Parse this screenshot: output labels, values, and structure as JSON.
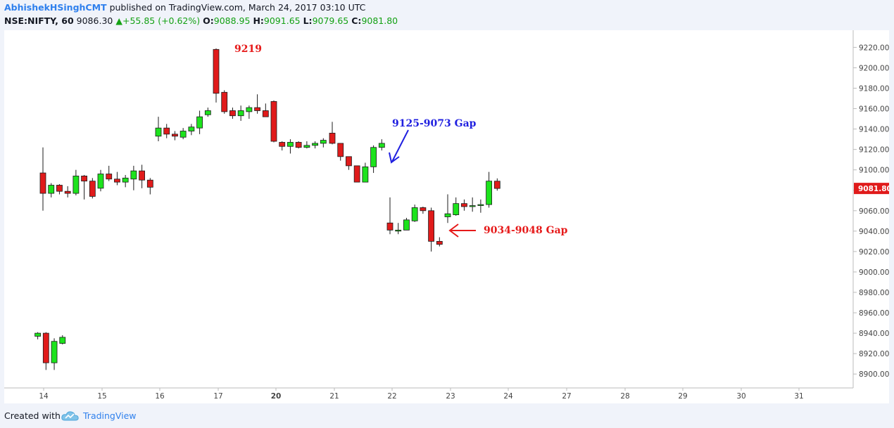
{
  "header": {
    "author": "AbhishekHSinghCMT",
    "published_text": "published on TradingView.com, March 24, 2017 03:10 UTC",
    "symbol": "NSE:NIFTY, 60",
    "last_price": "9086.30",
    "change_arrow": "▲",
    "change": "+55.85 (+0.62%)",
    "open_label": "O:",
    "open": "9088.95",
    "high_label": "H:",
    "high": "9091.65",
    "low_label": "L:",
    "low": "9079.65",
    "close_label": "C:",
    "close": "9081.80"
  },
  "footer": {
    "created_with": "Created with",
    "brand": "TradingView"
  },
  "colors": {
    "up": "#1de31d",
    "down": "#e01b1b",
    "wick": "#1c1c1c",
    "price_tag": "#e01b1b",
    "blue_annotation": "#2020e0",
    "red_annotation": "#e61a1a"
  },
  "chart_data": {
    "type": "candlestick",
    "title": "",
    "xlabel": "",
    "ylabel": "",
    "ylim": [
      8888,
      9235
    ],
    "grid": false,
    "y_ticks": [
      8900,
      8920,
      8940,
      8960,
      8980,
      9000,
      9020,
      9040,
      9060,
      9080,
      9100,
      9120,
      9140,
      9160,
      9180,
      9200,
      9220
    ],
    "y_tick_labels": [
      "8900.00",
      "8920.00",
      "8940.00",
      "8960.00",
      "8980.00",
      "9000.00",
      "9020.00",
      "9040.00",
      "9060.00",
      "9080.00",
      "9100.00",
      "9120.00",
      "9140.00",
      "9160.00",
      "9180.00",
      "9200.00",
      "9220.00"
    ],
    "x_ticks": [
      "14",
      "15",
      "16",
      "17",
      "20",
      "21",
      "22",
      "23",
      "24",
      "27",
      "28",
      "29",
      "30",
      "31"
    ],
    "bold_x_ticks": [
      "20"
    ],
    "last_price_label": "9081.80",
    "annotations": [
      {
        "text": "9219",
        "color": "red"
      },
      {
        "text": "9125-9073 Gap",
        "color": "blue"
      },
      {
        "text": "9034-9048 Gap",
        "color": "red"
      }
    ],
    "candles": [
      {
        "t": "Mar 13 14:15",
        "o": 8937,
        "h": 8941,
        "l": 8934,
        "c": 8940
      },
      {
        "t": "Mar 13 15:15",
        "o": 8940,
        "h": 8941,
        "l": 8904,
        "c": 8911
      },
      {
        "t": "Mar 13 16:15",
        "o": 8911,
        "h": 8935,
        "l": 8904,
        "c": 8932
      },
      {
        "t": "Mar 13 17:15",
        "o": 8930,
        "h": 8938,
        "l": 8929,
        "c": 8936
      },
      {
        "t": "Mar 14 09:15",
        "o": 9097,
        "h": 9122,
        "l": 9060,
        "c": 9077
      },
      {
        "t": "Mar 14 10:15",
        "o": 9077,
        "h": 9087,
        "l": 9073,
        "c": 9085
      },
      {
        "t": "Mar 14 11:15",
        "o": 9085,
        "h": 9086,
        "l": 9076,
        "c": 9079
      },
      {
        "t": "Mar 14 12:15",
        "o": 9079,
        "h": 9084,
        "l": 9073,
        "c": 9077
      },
      {
        "t": "Mar 14 13:15",
        "o": 9077,
        "h": 9100,
        "l": 9075,
        "c": 9094
      },
      {
        "t": "Mar 14 14:15",
        "o": 9094,
        "h": 9095,
        "l": 9071,
        "c": 9089
      },
      {
        "t": "Mar 14 15:15",
        "o": 9089,
        "h": 9092,
        "l": 9072,
        "c": 9074
      },
      {
        "t": "Mar 15 09:15",
        "o": 9082,
        "h": 9100,
        "l": 9079,
        "c": 9096
      },
      {
        "t": "Mar 15 10:15",
        "o": 9096,
        "h": 9104,
        "l": 9089,
        "c": 9091
      },
      {
        "t": "Mar 15 11:15",
        "o": 9091,
        "h": 9098,
        "l": 9085,
        "c": 9088
      },
      {
        "t": "Mar 15 12:15",
        "o": 9088,
        "h": 9095,
        "l": 9083,
        "c": 9092
      },
      {
        "t": "Mar 15 13:15",
        "o": 9091,
        "h": 9104,
        "l": 9080,
        "c": 9099
      },
      {
        "t": "Mar 15 14:15",
        "o": 9099,
        "h": 9105,
        "l": 9082,
        "c": 9090
      },
      {
        "t": "Mar 15 15:15",
        "o": 9090,
        "h": 9092,
        "l": 9076,
        "c": 9083
      },
      {
        "t": "Mar 16 09:15",
        "o": 9133,
        "h": 9152,
        "l": 9128,
        "c": 9141
      },
      {
        "t": "Mar 16 10:15",
        "o": 9141,
        "h": 9145,
        "l": 9131,
        "c": 9135
      },
      {
        "t": "Mar 16 11:15",
        "o": 9135,
        "h": 9138,
        "l": 9129,
        "c": 9133
      },
      {
        "t": "Mar 16 12:15",
        "o": 9132,
        "h": 9141,
        "l": 9130,
        "c": 9138
      },
      {
        "t": "Mar 16 13:15",
        "o": 9138,
        "h": 9145,
        "l": 9134,
        "c": 9142
      },
      {
        "t": "Mar 16 14:15",
        "o": 9141,
        "h": 9158,
        "l": 9135,
        "c": 9152
      },
      {
        "t": "Mar 16 15:15",
        "o": 9154,
        "h": 9161,
        "l": 9152,
        "c": 9158
      },
      {
        "t": "Mar 17 09:15",
        "o": 9218,
        "h": 9219,
        "l": 9166,
        "c": 9175
      },
      {
        "t": "Mar 17 10:15",
        "o": 9176,
        "h": 9178,
        "l": 9155,
        "c": 9157
      },
      {
        "t": "Mar 17 11:15",
        "o": 9158,
        "h": 9161,
        "l": 9150,
        "c": 9153
      },
      {
        "t": "Mar 17 12:15",
        "o": 9153,
        "h": 9163,
        "l": 9148,
        "c": 9158
      },
      {
        "t": "Mar 17 13:15",
        "o": 9157,
        "h": 9163,
        "l": 9150,
        "c": 9161
      },
      {
        "t": "Mar 17 14:15",
        "o": 9161,
        "h": 9174,
        "l": 9155,
        "c": 9158
      },
      {
        "t": "Mar 17 15:15",
        "o": 9158,
        "h": 9165,
        "l": 9152,
        "c": 9152
      },
      {
        "t": "Mar 20 09:15",
        "o": 9167,
        "h": 9168,
        "l": 9127,
        "c": 9128
      },
      {
        "t": "Mar 20 10:15",
        "o": 9127,
        "h": 9128,
        "l": 9119,
        "c": 9123
      },
      {
        "t": "Mar 20 11:15",
        "o": 9123,
        "h": 9130,
        "l": 9116,
        "c": 9127
      },
      {
        "t": "Mar 20 12:15",
        "o": 9127,
        "h": 9128,
        "l": 9121,
        "c": 9122
      },
      {
        "t": "Mar 20 13:15",
        "o": 9122,
        "h": 9128,
        "l": 9121,
        "c": 9124
      },
      {
        "t": "Mar 20 14:15",
        "o": 9124,
        "h": 9128,
        "l": 9121,
        "c": 9126
      },
      {
        "t": "Mar 20 15:15",
        "o": 9126,
        "h": 9131,
        "l": 9122,
        "c": 9129
      },
      {
        "t": "Mar 21 09:15",
        "o": 9136,
        "h": 9147,
        "l": 9125,
        "c": 9126
      },
      {
        "t": "Mar 21 10:15",
        "o": 9126,
        "h": 9126,
        "l": 9109,
        "c": 9113
      },
      {
        "t": "Mar 21 11:15",
        "o": 9113,
        "h": 9113,
        "l": 9100,
        "c": 9104
      },
      {
        "t": "Mar 21 12:15",
        "o": 9104,
        "h": 9104,
        "l": 9088,
        "c": 9088
      },
      {
        "t": "Mar 21 13:15",
        "o": 9088,
        "h": 9107,
        "l": 9088,
        "c": 9103
      },
      {
        "t": "Mar 21 14:15",
        "o": 9103,
        "h": 9124,
        "l": 9097,
        "c": 9122
      },
      {
        "t": "Mar 21 15:15",
        "o": 9122,
        "h": 9130,
        "l": 9119,
        "c": 9126
      },
      {
        "t": "Mar 22 09:15",
        "o": 9048,
        "h": 9073,
        "l": 9037,
        "c": 9041
      },
      {
        "t": "Mar 22 10:15",
        "o": 9040,
        "h": 9048,
        "l": 9037,
        "c": 9041
      },
      {
        "t": "Mar 22 11:15",
        "o": 9041,
        "h": 9053,
        "l": 9041,
        "c": 9051
      },
      {
        "t": "Mar 22 12:15",
        "o": 9050,
        "h": 9066,
        "l": 9049,
        "c": 9063
      },
      {
        "t": "Mar 22 13:15",
        "o": 9063,
        "h": 9064,
        "l": 9057,
        "c": 9060
      },
      {
        "t": "Mar 22 14:15",
        "o": 9060,
        "h": 9063,
        "l": 9020,
        "c": 9030
      },
      {
        "t": "Mar 22 15:15",
        "o": 9030,
        "h": 9034,
        "l": 9025,
        "c": 9027
      },
      {
        "t": "Mar 23 09:15",
        "o": 9054,
        "h": 9076,
        "l": 9048,
        "c": 9057
      },
      {
        "t": "Mar 23 10:15",
        "o": 9056,
        "h": 9073,
        "l": 9055,
        "c": 9067
      },
      {
        "t": "Mar 23 11:15",
        "o": 9067,
        "h": 9071,
        "l": 9060,
        "c": 9064
      },
      {
        "t": "Mar 23 12:15",
        "o": 9064,
        "h": 9073,
        "l": 9059,
        "c": 9065
      },
      {
        "t": "Mar 23 13:15",
        "o": 9065,
        "h": 9071,
        "l": 9058,
        "c": 9066
      },
      {
        "t": "Mar 23 14:15",
        "o": 9066,
        "h": 9098,
        "l": 9063,
        "c": 9089
      },
      {
        "t": "Mar 23 15:15",
        "o": 9088.95,
        "h": 9091.65,
        "l": 9079.65,
        "c": 9081.8
      }
    ]
  }
}
